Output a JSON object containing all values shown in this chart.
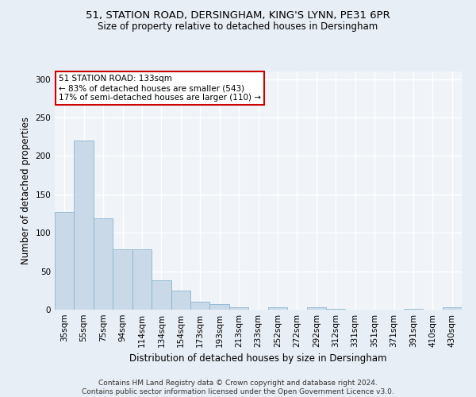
{
  "title1": "51, STATION ROAD, DERSINGHAM, KING'S LYNN, PE31 6PR",
  "title2": "Size of property relative to detached houses in Dersingham",
  "xlabel": "Distribution of detached houses by size in Dersingham",
  "ylabel": "Number of detached properties",
  "footnote": "Contains HM Land Registry data © Crown copyright and database right 2024.\nContains public sector information licensed under the Open Government Licence v3.0.",
  "annotation_line1": "51 STATION ROAD: 133sqm",
  "annotation_line2": "← 83% of detached houses are smaller (543)",
  "annotation_line3": "17% of semi-detached houses are larger (110) →",
  "bar_color": "#c9d9e8",
  "bar_edge_color": "#8ab4d0",
  "categories": [
    "35sqm",
    "55sqm",
    "75sqm",
    "94sqm",
    "114sqm",
    "134sqm",
    "154sqm",
    "173sqm",
    "193sqm",
    "213sqm",
    "233sqm",
    "252sqm",
    "272sqm",
    "292sqm",
    "312sqm",
    "331sqm",
    "351sqm",
    "371sqm",
    "391sqm",
    "410sqm",
    "430sqm"
  ],
  "values": [
    127,
    220,
    119,
    79,
    79,
    38,
    25,
    10,
    7,
    3,
    0,
    3,
    0,
    3,
    1,
    0,
    0,
    0,
    1,
    0,
    3
  ],
  "ylim": [
    0,
    310
  ],
  "yticks": [
    0,
    50,
    100,
    150,
    200,
    250,
    300
  ],
  "bg_color": "#e8eef5",
  "plot_bg_color": "#f0f4f8",
  "annotation_box_color": "white",
  "annotation_box_edge": "#cc0000",
  "grid_color": "#ffffff",
  "title1_fontsize": 9.5,
  "title2_fontsize": 8.5,
  "ylabel_fontsize": 8.5,
  "xlabel_fontsize": 8.5,
  "tick_fontsize": 7.5,
  "footnote_fontsize": 6.5,
  "annotation_fontsize": 7.5
}
